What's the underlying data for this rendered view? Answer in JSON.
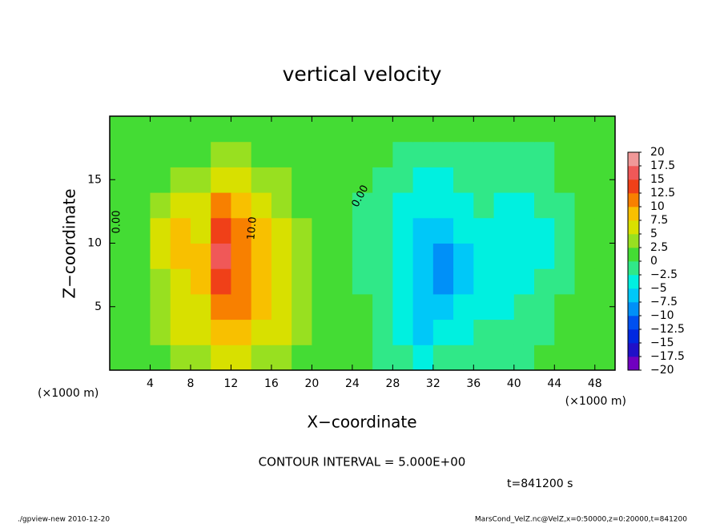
{
  "chart_data": {
    "type": "heatmap",
    "title": "vertical velocity",
    "xlabel": "X−coordinate",
    "ylabel": "Z−coordinate",
    "x_units": [
      "(×1000 m)",
      "(×1000 m)"
    ],
    "xlim": [
      0,
      50
    ],
    "xticks": [
      4,
      8,
      12,
      16,
      20,
      24,
      28,
      32,
      36,
      40,
      44,
      48
    ],
    "ylim": [
      0,
      20
    ],
    "yticks": [
      5,
      10,
      15
    ],
    "x": [
      1,
      3,
      5,
      7,
      9,
      11,
      13,
      15,
      17,
      19,
      21,
      23,
      25,
      27,
      29,
      31,
      33,
      35,
      37,
      39,
      41,
      43,
      45,
      47,
      49
    ],
    "y": [
      1,
      3,
      5,
      7,
      9,
      11,
      13,
      15,
      17,
      19
    ],
    "z": [
      [
        0.5,
        1,
        2,
        4,
        3,
        6,
        7,
        3,
        4,
        2,
        1,
        0.5,
        0,
        -1,
        -2,
        -4,
        -2,
        -2,
        -1,
        -1,
        -0.5,
        0,
        0.5,
        2,
        1
      ],
      [
        0.5,
        1,
        3,
        5,
        6,
        9,
        8,
        6,
        5,
        3,
        1.5,
        0.5,
        0,
        -1,
        -3,
        -6,
        -4,
        -3,
        -2,
        -2,
        -1,
        -0.5,
        0,
        1,
        1
      ],
      [
        0,
        1,
        3,
        6,
        7,
        11,
        10,
        8,
        7,
        4,
        2,
        0.5,
        0,
        -1,
        -4,
        -6,
        -6,
        -4,
        -3,
        -3,
        -2,
        -1,
        0,
        0.5,
        0.5
      ],
      [
        0,
        1,
        4,
        7,
        8,
        14,
        12,
        9,
        7,
        4,
        2,
        0.5,
        -0.5,
        -2,
        -5,
        -7,
        -9,
        -6,
        -3,
        -4,
        -4,
        -2,
        -0.5,
        0,
        0
      ],
      [
        0,
        1,
        5,
        8,
        8,
        16,
        12,
        9,
        6,
        4,
        2,
        0.5,
        -0.5,
        -2,
        -5,
        -7,
        -10,
        -7,
        -3,
        -5,
        -5,
        -3,
        -0.5,
        0,
        0
      ],
      [
        0,
        1,
        5,
        9,
        7,
        14,
        11,
        8,
        5,
        3,
        1.5,
        0.5,
        -0.5,
        -2,
        -5,
        -7,
        -7,
        -5,
        -3,
        -4,
        -5,
        -3,
        -1,
        0,
        0
      ],
      [
        0,
        1,
        3,
        5,
        5,
        10,
        8,
        6,
        4,
        2,
        1,
        0.5,
        -0.5,
        -1,
        -3,
        -5,
        -5,
        -3,
        -2,
        -3,
        -4,
        -2,
        -0.5,
        0,
        0
      ],
      [
        0,
        0.5,
        1.5,
        2.5,
        3,
        6,
        5,
        4,
        2.5,
        1.5,
        1,
        0.5,
        0,
        -0.5,
        -2,
        -3,
        -3,
        -2,
        -1,
        -1.5,
        -2,
        -1,
        0,
        0,
        0
      ],
      [
        0,
        0.5,
        1,
        1,
        1.5,
        2.5,
        2.5,
        2,
        1,
        1,
        0.5,
        0.5,
        0,
        0,
        -0.5,
        -1,
        -1,
        -0.5,
        -0.5,
        -0.5,
        -0.5,
        -0.5,
        0,
        0,
        0
      ],
      [
        0,
        0.5,
        0.5,
        0.5,
        1,
        1,
        1,
        1,
        0.5,
        0.5,
        0.5,
        0.5,
        0,
        0,
        0,
        0,
        0,
        0,
        0,
        0,
        0,
        0,
        0,
        0,
        0
      ]
    ],
    "colorbar_ticks": [
      {
        "value": -20,
        "label": "−20"
      },
      {
        "value": -17.5,
        "label": "−17.5"
      },
      {
        "value": -15,
        "label": "−15"
      },
      {
        "value": -12.5,
        "label": "−12.5"
      },
      {
        "value": -10,
        "label": "−10"
      },
      {
        "value": -7.5,
        "label": "−7.5"
      },
      {
        "value": -5,
        "label": "−5"
      },
      {
        "value": -2.5,
        "label": "−2.5"
      },
      0,
      2.5,
      5,
      7.5,
      10,
      12.5,
      15,
      17.5,
      20
    ],
    "colors": [
      "#7000c0",
      "#2010c8",
      "#0028e0",
      "#0050f0",
      "#0090f8",
      "#00c8f8",
      "#00f0e0",
      "#30e888",
      "#44dc34",
      "#98e020",
      "#d8e000",
      "#f8c000",
      "#f88000",
      "#f04018",
      "#f05858",
      "#f09898"
    ],
    "contour_labels": [
      "0.00",
      "0.00",
      "10.0"
    ],
    "contour_interval": "CONTOUR INTERVAL = 5.000E+00",
    "time": "t=841200 s",
    "footer_left": "./gpview-new  2010-12-20",
    "footer_right": "MarsCond_VelZ.nc@VelZ,x=0:50000,z=0:20000,t=841200"
  }
}
